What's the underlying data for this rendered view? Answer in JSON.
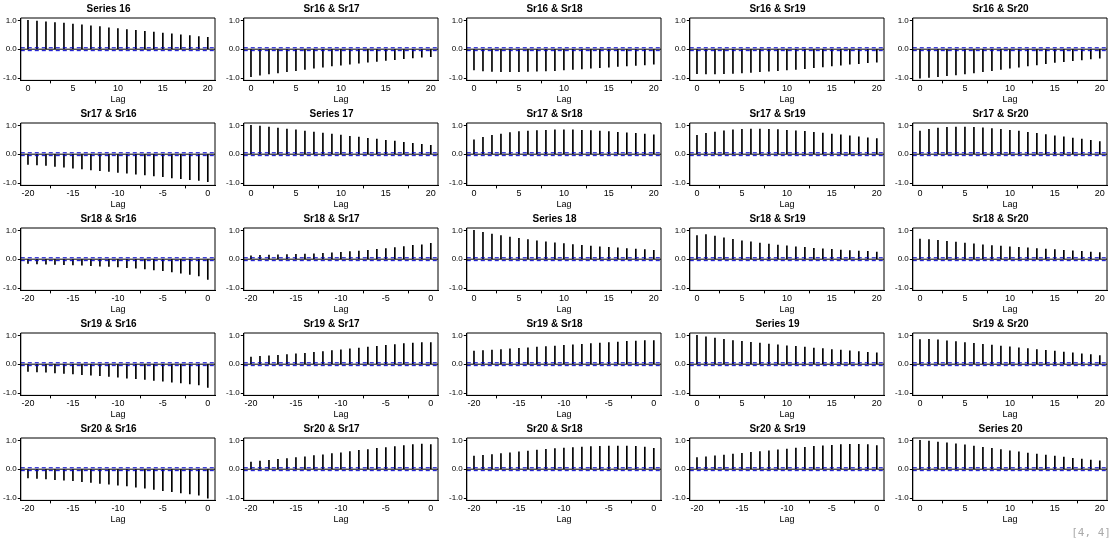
{
  "chart_data": [
    {
      "type": "bar",
      "title": "Series 16",
      "xlabel": "Lag",
      "color": "#000000",
      "x": [
        0,
        1,
        2,
        3,
        4,
        5,
        6,
        7,
        8,
        9,
        10,
        11,
        12,
        13,
        14,
        15,
        16,
        17,
        18,
        19,
        20
      ],
      "values": [
        1.0,
        0.97,
        0.95,
        0.92,
        0.9,
        0.87,
        0.84,
        0.81,
        0.78,
        0.74,
        0.71,
        0.68,
        0.65,
        0.62,
        0.59,
        0.56,
        0.53,
        0.5,
        0.47,
        0.44,
        0.41
      ],
      "xlim": [
        -0.8,
        20.8
      ],
      "xticks": [
        0,
        5,
        10,
        15,
        20
      ],
      "ylim": [
        -1.08,
        1.08
      ],
      "yticks": [
        {
          "value": -1,
          "label": "-1.0"
        },
        {
          "value": 0,
          "label": "0.0"
        },
        {
          "value": 1,
          "label": "1.0"
        }
      ],
      "ref_lines": [
        {
          "axis": "y",
          "value": 0,
          "color": "#000000",
          "line_style": "solid"
        },
        {
          "axis": "y",
          "value": 0.05,
          "color": "#0000cc",
          "line_style": "dashed"
        },
        {
          "axis": "y",
          "value": -0.05,
          "color": "#0000cc",
          "line_style": "dashed"
        }
      ]
    },
    {
      "type": "bar",
      "title": "Sr16 & Sr17",
      "xlabel": "Lag",
      "color": "#000000",
      "x": [
        0,
        1,
        2,
        3,
        4,
        5,
        6,
        7,
        8,
        9,
        10,
        11,
        12,
        13,
        14,
        15,
        16,
        17,
        18,
        19,
        20
      ],
      "values": [
        -0.95,
        -0.9,
        -0.86,
        -0.82,
        -0.78,
        -0.74,
        -0.7,
        -0.66,
        -0.62,
        -0.58,
        -0.55,
        -0.52,
        -0.48,
        -0.45,
        -0.42,
        -0.39,
        -0.36,
        -0.33,
        -0.3,
        -0.28,
        -0.26
      ],
      "xlim": [
        -0.8,
        20.8
      ],
      "xticks": [
        0,
        5,
        10,
        15,
        20
      ],
      "ylim": [
        -1.08,
        1.08
      ],
      "yticks": [
        {
          "value": -1,
          "label": "-1.0"
        },
        {
          "value": 0,
          "label": "0.0"
        },
        {
          "value": 1,
          "label": "1.0"
        }
      ],
      "ref_lines": [
        {
          "axis": "y",
          "value": 0,
          "color": "#000000",
          "line_style": "solid"
        },
        {
          "axis": "y",
          "value": 0.05,
          "color": "#0000cc",
          "line_style": "dashed"
        },
        {
          "axis": "y",
          "value": -0.05,
          "color": "#0000cc",
          "line_style": "dashed"
        }
      ]
    },
    {
      "type": "bar",
      "title": "Sr16 & Sr18",
      "xlabel": "Lag",
      "color": "#000000",
      "x": [
        0,
        1,
        2,
        3,
        4,
        5,
        6,
        7,
        8,
        9,
        10,
        11,
        12,
        13,
        14,
        15,
        16,
        17,
        18,
        19,
        20
      ],
      "values": [
        -0.72,
        -0.75,
        -0.77,
        -0.78,
        -0.78,
        -0.78,
        -0.77,
        -0.76,
        -0.75,
        -0.74,
        -0.72,
        -0.7,
        -0.68,
        -0.66,
        -0.64,
        -0.62,
        -0.6,
        -0.58,
        -0.56,
        -0.54,
        -0.52
      ],
      "xlim": [
        -0.8,
        20.8
      ],
      "xticks": [
        0,
        5,
        10,
        15,
        20
      ],
      "ylim": [
        -1.08,
        1.08
      ],
      "yticks": [
        {
          "value": -1,
          "label": "-1.0"
        },
        {
          "value": 0,
          "label": "0.0"
        },
        {
          "value": 1,
          "label": "1.0"
        }
      ],
      "ref_lines": [
        {
          "axis": "y",
          "value": 0,
          "color": "#000000",
          "line_style": "solid"
        },
        {
          "axis": "y",
          "value": 0.05,
          "color": "#0000cc",
          "line_style": "dashed"
        },
        {
          "axis": "y",
          "value": -0.05,
          "color": "#0000cc",
          "line_style": "dashed"
        }
      ]
    },
    {
      "type": "bar",
      "title": "Sr16 & Sr19",
      "xlabel": "Lag",
      "color": "#000000",
      "x": [
        0,
        1,
        2,
        3,
        4,
        5,
        6,
        7,
        8,
        9,
        10,
        11,
        12,
        13,
        14,
        15,
        16,
        17,
        18,
        19,
        20
      ],
      "values": [
        -0.85,
        -0.86,
        -0.86,
        -0.85,
        -0.84,
        -0.82,
        -0.8,
        -0.78,
        -0.76,
        -0.74,
        -0.72,
        -0.7,
        -0.67,
        -0.64,
        -0.61,
        -0.58,
        -0.55,
        -0.52,
        -0.5,
        -0.47,
        -0.45
      ],
      "xlim": [
        -0.8,
        20.8
      ],
      "xticks": [
        0,
        5,
        10,
        15,
        20
      ],
      "ylim": [
        -1.08,
        1.08
      ],
      "yticks": [
        {
          "value": -1,
          "label": "-1.0"
        },
        {
          "value": 0,
          "label": "0.0"
        },
        {
          "value": 1,
          "label": "1.0"
        }
      ],
      "ref_lines": [
        {
          "axis": "y",
          "value": 0,
          "color": "#000000",
          "line_style": "solid"
        },
        {
          "axis": "y",
          "value": 0.05,
          "color": "#0000cc",
          "line_style": "dashed"
        },
        {
          "axis": "y",
          "value": -0.05,
          "color": "#0000cc",
          "line_style": "dashed"
        }
      ]
    },
    {
      "type": "bar",
      "title": "Sr16 & Sr20",
      "xlabel": "Lag",
      "color": "#000000",
      "x": [
        0,
        1,
        2,
        3,
        4,
        5,
        6,
        7,
        8,
        9,
        10,
        11,
        12,
        13,
        14,
        15,
        16,
        17,
        18,
        19,
        20
      ],
      "values": [
        -1.0,
        -0.98,
        -0.95,
        -0.92,
        -0.89,
        -0.86,
        -0.82,
        -0.78,
        -0.74,
        -0.7,
        -0.66,
        -0.62,
        -0.58,
        -0.54,
        -0.5,
        -0.46,
        -0.43,
        -0.4,
        -0.37,
        -0.34,
        -0.31
      ],
      "xlim": [
        -0.8,
        20.8
      ],
      "xticks": [
        0,
        5,
        10,
        15,
        20
      ],
      "ylim": [
        -1.08,
        1.08
      ],
      "yticks": [
        {
          "value": -1,
          "label": "-1.0"
        },
        {
          "value": 0,
          "label": "0.0"
        },
        {
          "value": 1,
          "label": "1.0"
        }
      ],
      "ref_lines": [
        {
          "axis": "y",
          "value": 0,
          "color": "#000000",
          "line_style": "solid"
        },
        {
          "axis": "y",
          "value": 0.05,
          "color": "#0000cc",
          "line_style": "dashed"
        },
        {
          "axis": "y",
          "value": -0.05,
          "color": "#0000cc",
          "line_style": "dashed"
        }
      ]
    },
    {
      "type": "bar",
      "title": "Sr17 & Sr16",
      "xlabel": "Lag",
      "color": "#000000",
      "x": [
        -20,
        -19,
        -18,
        -17,
        -16,
        -15,
        -14,
        -13,
        -12,
        -11,
        -10,
        -9,
        -8,
        -7,
        -6,
        -5,
        -4,
        -3,
        -2,
        -1,
        0
      ],
      "values": [
        -0.35,
        -0.37,
        -0.39,
        -0.42,
        -0.45,
        -0.48,
        -0.51,
        -0.54,
        -0.57,
        -0.6,
        -0.63,
        -0.66,
        -0.69,
        -0.72,
        -0.75,
        -0.78,
        -0.82,
        -0.85,
        -0.88,
        -0.91,
        -0.95
      ],
      "xlim": [
        -20.8,
        0.8
      ],
      "xticks": [
        -20,
        -15,
        -10,
        -5,
        0
      ],
      "ylim": [
        -1.08,
        1.08
      ],
      "yticks": [
        {
          "value": -1,
          "label": "-1.0"
        },
        {
          "value": 0,
          "label": "0.0"
        },
        {
          "value": 1,
          "label": "1.0"
        }
      ],
      "ref_lines": [
        {
          "axis": "y",
          "value": 0,
          "color": "#000000",
          "line_style": "solid"
        },
        {
          "axis": "y",
          "value": 0.05,
          "color": "#0000cc",
          "line_style": "dashed"
        },
        {
          "axis": "y",
          "value": -0.05,
          "color": "#0000cc",
          "line_style": "dashed"
        }
      ]
    },
    {
      "type": "bar",
      "title": "Series 17",
      "xlabel": "Lag",
      "color": "#000000",
      "x": [
        0,
        1,
        2,
        3,
        4,
        5,
        6,
        7,
        8,
        9,
        10,
        11,
        12,
        13,
        14,
        15,
        16,
        17,
        18,
        19,
        20
      ],
      "values": [
        1.0,
        0.97,
        0.94,
        0.9,
        0.87,
        0.84,
        0.8,
        0.77,
        0.73,
        0.7,
        0.66,
        0.62,
        0.59,
        0.55,
        0.52,
        0.48,
        0.45,
        0.41,
        0.38,
        0.34,
        0.31
      ],
      "xlim": [
        -0.8,
        20.8
      ],
      "xticks": [
        0,
        5,
        10,
        15,
        20
      ],
      "ylim": [
        -1.08,
        1.08
      ],
      "yticks": [
        {
          "value": -1,
          "label": "-1.0"
        },
        {
          "value": 0,
          "label": "0.0"
        },
        {
          "value": 1,
          "label": "1.0"
        }
      ],
      "ref_lines": [
        {
          "axis": "y",
          "value": 0,
          "color": "#000000",
          "line_style": "solid"
        },
        {
          "axis": "y",
          "value": 0.05,
          "color": "#0000cc",
          "line_style": "dashed"
        },
        {
          "axis": "y",
          "value": -0.05,
          "color": "#0000cc",
          "line_style": "dashed"
        }
      ]
    },
    {
      "type": "bar",
      "title": "Sr17 & Sr18",
      "xlabel": "Lag",
      "color": "#000000",
      "x": [
        0,
        1,
        2,
        3,
        4,
        5,
        6,
        7,
        8,
        9,
        10,
        11,
        12,
        13,
        14,
        15,
        16,
        17,
        18,
        19,
        20
      ],
      "values": [
        0.5,
        0.58,
        0.65,
        0.7,
        0.75,
        0.78,
        0.8,
        0.82,
        0.83,
        0.84,
        0.84,
        0.84,
        0.83,
        0.82,
        0.8,
        0.78,
        0.76,
        0.74,
        0.72,
        0.7,
        0.67
      ],
      "xlim": [
        -0.8,
        20.8
      ],
      "xticks": [
        0,
        5,
        10,
        15,
        20
      ],
      "ylim": [
        -1.08,
        1.08
      ],
      "yticks": [
        {
          "value": -1,
          "label": "-1.0"
        },
        {
          "value": 0,
          "label": "0.0"
        },
        {
          "value": 1,
          "label": "1.0"
        }
      ],
      "ref_lines": [
        {
          "axis": "y",
          "value": 0,
          "color": "#000000",
          "line_style": "solid"
        },
        {
          "axis": "y",
          "value": 0.05,
          "color": "#0000cc",
          "line_style": "dashed"
        },
        {
          "axis": "y",
          "value": -0.05,
          "color": "#0000cc",
          "line_style": "dashed"
        }
      ]
    },
    {
      "type": "bar",
      "title": "Sr17 & Sr19",
      "xlabel": "Lag",
      "color": "#000000",
      "x": [
        0,
        1,
        2,
        3,
        4,
        5,
        6,
        7,
        8,
        9,
        10,
        11,
        12,
        13,
        14,
        15,
        16,
        17,
        18,
        19,
        20
      ],
      "values": [
        0.65,
        0.72,
        0.77,
        0.81,
        0.84,
        0.86,
        0.87,
        0.87,
        0.86,
        0.85,
        0.83,
        0.81,
        0.79,
        0.76,
        0.73,
        0.7,
        0.67,
        0.64,
        0.6,
        0.57,
        0.54
      ],
      "xlim": [
        -0.8,
        20.8
      ],
      "xticks": [
        0,
        5,
        10,
        15,
        20
      ],
      "ylim": [
        -1.08,
        1.08
      ],
      "yticks": [
        {
          "value": -1,
          "label": "-1.0"
        },
        {
          "value": 0,
          "label": "0.0"
        },
        {
          "value": 1,
          "label": "1.0"
        }
      ],
      "ref_lines": [
        {
          "axis": "y",
          "value": 0,
          "color": "#000000",
          "line_style": "solid"
        },
        {
          "axis": "y",
          "value": 0.05,
          "color": "#0000cc",
          "line_style": "dashed"
        },
        {
          "axis": "y",
          "value": -0.05,
          "color": "#0000cc",
          "line_style": "dashed"
        }
      ]
    },
    {
      "type": "bar",
      "title": "Sr17 & Sr20",
      "xlabel": "Lag",
      "color": "#000000",
      "x": [
        0,
        1,
        2,
        3,
        4,
        5,
        6,
        7,
        8,
        9,
        10,
        11,
        12,
        13,
        14,
        15,
        16,
        17,
        18,
        19,
        20
      ],
      "values": [
        0.8,
        0.86,
        0.9,
        0.93,
        0.94,
        0.94,
        0.93,
        0.91,
        0.89,
        0.86,
        0.83,
        0.8,
        0.76,
        0.72,
        0.68,
        0.64,
        0.6,
        0.56,
        0.52,
        0.48,
        0.44
      ],
      "xlim": [
        -0.8,
        20.8
      ],
      "xticks": [
        0,
        5,
        10,
        15,
        20
      ],
      "ylim": [
        -1.08,
        1.08
      ],
      "yticks": [
        {
          "value": -1,
          "label": "-1.0"
        },
        {
          "value": 0,
          "label": "0.0"
        },
        {
          "value": 1,
          "label": "1.0"
        }
      ],
      "ref_lines": [
        {
          "axis": "y",
          "value": 0,
          "color": "#000000",
          "line_style": "solid"
        },
        {
          "axis": "y",
          "value": 0.05,
          "color": "#0000cc",
          "line_style": "dashed"
        },
        {
          "axis": "y",
          "value": -0.05,
          "color": "#0000cc",
          "line_style": "dashed"
        }
      ]
    },
    {
      "type": "bar",
      "title": "Sr18 & Sr16",
      "xlabel": "Lag",
      "color": "#000000",
      "x": [
        -20,
        -19,
        -18,
        -17,
        -16,
        -15,
        -14,
        -13,
        -12,
        -11,
        -10,
        -9,
        -8,
        -7,
        -6,
        -5,
        -4,
        -3,
        -2,
        -1,
        0
      ],
      "values": [
        -0.15,
        -0.16,
        -0.17,
        -0.18,
        -0.19,
        -0.2,
        -0.21,
        -0.22,
        -0.24,
        -0.25,
        -0.27,
        -0.29,
        -0.31,
        -0.34,
        -0.37,
        -0.4,
        -0.44,
        -0.48,
        -0.53,
        -0.58,
        -0.7
      ],
      "xlim": [
        -20.8,
        0.8
      ],
      "xticks": [
        -20,
        -15,
        -10,
        -5,
        0
      ],
      "ylim": [
        -1.08,
        1.08
      ],
      "yticks": [
        {
          "value": -1,
          "label": "-1.0"
        },
        {
          "value": 0,
          "label": "0.0"
        },
        {
          "value": 1,
          "label": "1.0"
        }
      ],
      "ref_lines": [
        {
          "axis": "y",
          "value": 0,
          "color": "#000000",
          "line_style": "solid"
        },
        {
          "axis": "y",
          "value": 0.05,
          "color": "#0000cc",
          "line_style": "dashed"
        },
        {
          "axis": "y",
          "value": -0.05,
          "color": "#0000cc",
          "line_style": "dashed"
        }
      ]
    },
    {
      "type": "bar",
      "title": "Sr18 & Sr17",
      "xlabel": "Lag",
      "color": "#000000",
      "x": [
        -20,
        -19,
        -18,
        -17,
        -16,
        -15,
        -14,
        -13,
        -12,
        -11,
        -10,
        -9,
        -8,
        -7,
        -6,
        -5,
        -4,
        -3,
        -2,
        -1,
        0
      ],
      "values": [
        0.12,
        0.13,
        0.14,
        0.15,
        0.16,
        0.17,
        0.18,
        0.19,
        0.2,
        0.22,
        0.24,
        0.26,
        0.28,
        0.31,
        0.34,
        0.37,
        0.4,
        0.44,
        0.48,
        0.5,
        0.55
      ],
      "xlim": [
        -20.8,
        0.8
      ],
      "xticks": [
        -20,
        -15,
        -10,
        -5,
        0
      ],
      "ylim": [
        -1.08,
        1.08
      ],
      "yticks": [
        {
          "value": -1,
          "label": "-1.0"
        },
        {
          "value": 0,
          "label": "0.0"
        },
        {
          "value": 1,
          "label": "1.0"
        }
      ],
      "ref_lines": [
        {
          "axis": "y",
          "value": 0,
          "color": "#000000",
          "line_style": "solid"
        },
        {
          "axis": "y",
          "value": 0.05,
          "color": "#0000cc",
          "line_style": "dashed"
        },
        {
          "axis": "y",
          "value": -0.05,
          "color": "#0000cc",
          "line_style": "dashed"
        }
      ]
    },
    {
      "type": "bar",
      "title": "Series 18",
      "xlabel": "Lag",
      "color": "#000000",
      "x": [
        0,
        1,
        2,
        3,
        4,
        5,
        6,
        7,
        8,
        9,
        10,
        11,
        12,
        13,
        14,
        15,
        16,
        17,
        18,
        19,
        20
      ],
      "values": [
        1.0,
        0.93,
        0.87,
        0.82,
        0.77,
        0.72,
        0.68,
        0.64,
        0.6,
        0.57,
        0.54,
        0.51,
        0.48,
        0.45,
        0.43,
        0.41,
        0.39,
        0.37,
        0.35,
        0.33,
        0.31
      ],
      "xlim": [
        -0.8,
        20.8
      ],
      "xticks": [
        0,
        5,
        10,
        15,
        20
      ],
      "ylim": [
        -1.08,
        1.08
      ],
      "yticks": [
        {
          "value": -1,
          "label": "-1.0"
        },
        {
          "value": 0,
          "label": "0.0"
        },
        {
          "value": 1,
          "label": "1.0"
        }
      ],
      "ref_lines": [
        {
          "axis": "y",
          "value": 0,
          "color": "#000000",
          "line_style": "solid"
        },
        {
          "axis": "y",
          "value": 0.05,
          "color": "#0000cc",
          "line_style": "dashed"
        },
        {
          "axis": "y",
          "value": -0.05,
          "color": "#0000cc",
          "line_style": "dashed"
        }
      ]
    },
    {
      "type": "bar",
      "title": "Sr18 & Sr19",
      "xlabel": "Lag",
      "color": "#000000",
      "x": [
        0,
        1,
        2,
        3,
        4,
        5,
        6,
        7,
        8,
        9,
        10,
        11,
        12,
        13,
        14,
        15,
        16,
        17,
        18,
        19,
        20
      ],
      "values": [
        0.82,
        0.85,
        0.8,
        0.74,
        0.69,
        0.64,
        0.6,
        0.56,
        0.52,
        0.49,
        0.46,
        0.43,
        0.41,
        0.38,
        0.36,
        0.34,
        0.32,
        0.3,
        0.28,
        0.27,
        0.25
      ],
      "xlim": [
        -0.8,
        20.8
      ],
      "xticks": [
        0,
        5,
        10,
        15,
        20
      ],
      "ylim": [
        -1.08,
        1.08
      ],
      "yticks": [
        {
          "value": -1,
          "label": "-1.0"
        },
        {
          "value": 0,
          "label": "0.0"
        },
        {
          "value": 1,
          "label": "1.0"
        }
      ],
      "ref_lines": [
        {
          "axis": "y",
          "value": 0,
          "color": "#000000",
          "line_style": "solid"
        },
        {
          "axis": "y",
          "value": 0.05,
          "color": "#0000cc",
          "line_style": "dashed"
        },
        {
          "axis": "y",
          "value": -0.05,
          "color": "#0000cc",
          "line_style": "dashed"
        }
      ]
    },
    {
      "type": "bar",
      "title": "Sr18 & Sr20",
      "xlabel": "Lag",
      "color": "#000000",
      "x": [
        0,
        1,
        2,
        3,
        4,
        5,
        6,
        7,
        8,
        9,
        10,
        11,
        12,
        13,
        14,
        15,
        16,
        17,
        18,
        19,
        20
      ],
      "values": [
        0.7,
        0.68,
        0.65,
        0.62,
        0.59,
        0.56,
        0.53,
        0.5,
        0.47,
        0.45,
        0.43,
        0.41,
        0.39,
        0.37,
        0.35,
        0.33,
        0.31,
        0.29,
        0.27,
        0.25,
        0.23
      ],
      "xlim": [
        -0.8,
        20.8
      ],
      "xticks": [
        0,
        5,
        10,
        15,
        20
      ],
      "ylim": [
        -1.08,
        1.08
      ],
      "yticks": [
        {
          "value": -1,
          "label": "-1.0"
        },
        {
          "value": 0,
          "label": "0.0"
        },
        {
          "value": 1,
          "label": "1.0"
        }
      ],
      "ref_lines": [
        {
          "axis": "y",
          "value": 0,
          "color": "#000000",
          "line_style": "solid"
        },
        {
          "axis": "y",
          "value": 0.05,
          "color": "#0000cc",
          "line_style": "dashed"
        },
        {
          "axis": "y",
          "value": -0.05,
          "color": "#0000cc",
          "line_style": "dashed"
        }
      ]
    },
    {
      "type": "bar",
      "title": "Sr19 & Sr16",
      "xlabel": "Lag",
      "color": "#000000",
      "x": [
        -20,
        -19,
        -18,
        -17,
        -16,
        -15,
        -14,
        -13,
        -12,
        -11,
        -10,
        -9,
        -8,
        -7,
        -6,
        -5,
        -4,
        -3,
        -2,
        -1,
        0
      ],
      "values": [
        -0.25,
        -0.27,
        -0.28,
        -0.3,
        -0.32,
        -0.34,
        -0.36,
        -0.38,
        -0.4,
        -0.42,
        -0.45,
        -0.48,
        -0.5,
        -0.53,
        -0.56,
        -0.59,
        -0.62,
        -0.65,
        -0.68,
        -0.72,
        -0.8
      ],
      "xlim": [
        -20.8,
        0.8
      ],
      "xticks": [
        -20,
        -15,
        -10,
        -5,
        0
      ],
      "ylim": [
        -1.08,
        1.08
      ],
      "yticks": [
        {
          "value": -1,
          "label": "-1.0"
        },
        {
          "value": 0,
          "label": "0.0"
        },
        {
          "value": 1,
          "label": "1.0"
        }
      ],
      "ref_lines": [
        {
          "axis": "y",
          "value": 0,
          "color": "#000000",
          "line_style": "solid"
        },
        {
          "axis": "y",
          "value": 0.05,
          "color": "#0000cc",
          "line_style": "dashed"
        },
        {
          "axis": "y",
          "value": -0.05,
          "color": "#0000cc",
          "line_style": "dashed"
        }
      ]
    },
    {
      "type": "bar",
      "title": "Sr19 & Sr17",
      "xlabel": "Lag",
      "color": "#000000",
      "x": [
        -20,
        -19,
        -18,
        -17,
        -16,
        -15,
        -14,
        -13,
        -12,
        -11,
        -10,
        -9,
        -8,
        -7,
        -6,
        -5,
        -4,
        -3,
        -2,
        -1,
        0
      ],
      "values": [
        0.25,
        0.27,
        0.29,
        0.31,
        0.33,
        0.36,
        0.38,
        0.41,
        0.44,
        0.47,
        0.5,
        0.53,
        0.56,
        0.59,
        0.62,
        0.65,
        0.68,
        0.71,
        0.73,
        0.75,
        0.75
      ],
      "xlim": [
        -20.8,
        0.8
      ],
      "xticks": [
        -20,
        -15,
        -10,
        -5,
        0
      ],
      "ylim": [
        -1.08,
        1.08
      ],
      "yticks": [
        {
          "value": -1,
          "label": "-1.0"
        },
        {
          "value": 0,
          "label": "0.0"
        },
        {
          "value": 1,
          "label": "1.0"
        }
      ],
      "ref_lines": [
        {
          "axis": "y",
          "value": 0,
          "color": "#000000",
          "line_style": "solid"
        },
        {
          "axis": "y",
          "value": 0.05,
          "color": "#0000cc",
          "line_style": "dashed"
        },
        {
          "axis": "y",
          "value": -0.05,
          "color": "#0000cc",
          "line_style": "dashed"
        }
      ]
    },
    {
      "type": "bar",
      "title": "Sr19 & Sr18",
      "xlabel": "Lag",
      "color": "#000000",
      "x": [
        -20,
        -19,
        -18,
        -17,
        -16,
        -15,
        -14,
        -13,
        -12,
        -11,
        -10,
        -9,
        -8,
        -7,
        -6,
        -5,
        -4,
        -3,
        -2,
        -1,
        0
      ],
      "values": [
        0.45,
        0.47,
        0.49,
        0.51,
        0.53,
        0.55,
        0.57,
        0.59,
        0.61,
        0.63,
        0.65,
        0.67,
        0.69,
        0.71,
        0.73,
        0.75,
        0.77,
        0.79,
        0.8,
        0.82,
        0.82
      ],
      "xlim": [
        -20.8,
        0.8
      ],
      "xticks": [
        -20,
        -15,
        -10,
        -5,
        0
      ],
      "ylim": [
        -1.08,
        1.08
      ],
      "yticks": [
        {
          "value": -1,
          "label": "-1.0"
        },
        {
          "value": 0,
          "label": "0.0"
        },
        {
          "value": 1,
          "label": "1.0"
        }
      ],
      "ref_lines": [
        {
          "axis": "y",
          "value": 0,
          "color": "#000000",
          "line_style": "solid"
        },
        {
          "axis": "y",
          "value": 0.05,
          "color": "#0000cc",
          "line_style": "dashed"
        },
        {
          "axis": "y",
          "value": -0.05,
          "color": "#0000cc",
          "line_style": "dashed"
        }
      ]
    },
    {
      "type": "bar",
      "title": "Series 19",
      "xlabel": "Lag",
      "color": "#000000",
      "x": [
        0,
        1,
        2,
        3,
        4,
        5,
        6,
        7,
        8,
        9,
        10,
        11,
        12,
        13,
        14,
        15,
        16,
        17,
        18,
        19,
        20
      ],
      "values": [
        1.0,
        0.95,
        0.9,
        0.86,
        0.82,
        0.79,
        0.76,
        0.73,
        0.7,
        0.67,
        0.64,
        0.62,
        0.59,
        0.56,
        0.54,
        0.51,
        0.49,
        0.46,
        0.44,
        0.41,
        0.39
      ],
      "xlim": [
        -0.8,
        20.8
      ],
      "xticks": [
        0,
        5,
        10,
        15,
        20
      ],
      "ylim": [
        -1.08,
        1.08
      ],
      "yticks": [
        {
          "value": -1,
          "label": "-1.0"
        },
        {
          "value": 0,
          "label": "0.0"
        },
        {
          "value": 1,
          "label": "1.0"
        }
      ],
      "ref_lines": [
        {
          "axis": "y",
          "value": 0,
          "color": "#000000",
          "line_style": "solid"
        },
        {
          "axis": "y",
          "value": 0.05,
          "color": "#0000cc",
          "line_style": "dashed"
        },
        {
          "axis": "y",
          "value": -0.05,
          "color": "#0000cc",
          "line_style": "dashed"
        }
      ]
    },
    {
      "type": "bar",
      "title": "Sr19 & Sr20",
      "xlabel": "Lag",
      "color": "#000000",
      "x": [
        0,
        1,
        2,
        3,
        4,
        5,
        6,
        7,
        8,
        9,
        10,
        11,
        12,
        13,
        14,
        15,
        16,
        17,
        18,
        19,
        20
      ],
      "values": [
        0.85,
        0.86,
        0.84,
        0.81,
        0.78,
        0.75,
        0.72,
        0.69,
        0.66,
        0.63,
        0.6,
        0.57,
        0.54,
        0.51,
        0.48,
        0.45,
        0.42,
        0.39,
        0.36,
        0.33,
        0.3
      ],
      "xlim": [
        -0.8,
        20.8
      ],
      "xticks": [
        0,
        5,
        10,
        15,
        20
      ],
      "ylim": [
        -1.08,
        1.08
      ],
      "yticks": [
        {
          "value": -1,
          "label": "-1.0"
        },
        {
          "value": 0,
          "label": "0.0"
        },
        {
          "value": 1,
          "label": "1.0"
        }
      ],
      "ref_lines": [
        {
          "axis": "y",
          "value": 0,
          "color": "#000000",
          "line_style": "solid"
        },
        {
          "axis": "y",
          "value": 0.05,
          "color": "#0000cc",
          "line_style": "dashed"
        },
        {
          "axis": "y",
          "value": -0.05,
          "color": "#0000cc",
          "line_style": "dashed"
        }
      ]
    },
    {
      "type": "bar",
      "title": "Sr20 & Sr16",
      "xlabel": "Lag",
      "color": "#000000",
      "x": [
        -20,
        -19,
        -18,
        -17,
        -16,
        -15,
        -14,
        -13,
        -12,
        -11,
        -10,
        -9,
        -8,
        -7,
        -6,
        -5,
        -4,
        -3,
        -2,
        -1,
        0
      ],
      "values": [
        -0.3,
        -0.32,
        -0.34,
        -0.36,
        -0.38,
        -0.4,
        -0.43,
        -0.46,
        -0.49,
        -0.52,
        -0.55,
        -0.58,
        -0.62,
        -0.66,
        -0.7,
        -0.74,
        -0.78,
        -0.82,
        -0.86,
        -0.9,
        -1.0
      ],
      "xlim": [
        -20.8,
        0.8
      ],
      "xticks": [
        -20,
        -15,
        -10,
        -5,
        0
      ],
      "ylim": [
        -1.08,
        1.08
      ],
      "yticks": [
        {
          "value": -1,
          "label": "-1.0"
        },
        {
          "value": 0,
          "label": "0.0"
        },
        {
          "value": 1,
          "label": "1.0"
        }
      ],
      "ref_lines": [
        {
          "axis": "y",
          "value": 0,
          "color": "#000000",
          "line_style": "solid"
        },
        {
          "axis": "y",
          "value": 0.05,
          "color": "#0000cc",
          "line_style": "dashed"
        },
        {
          "axis": "y",
          "value": -0.05,
          "color": "#0000cc",
          "line_style": "dashed"
        }
      ]
    },
    {
      "type": "bar",
      "title": "Sr20 & Sr17",
      "xlabel": "Lag",
      "color": "#000000",
      "x": [
        -20,
        -19,
        -18,
        -17,
        -16,
        -15,
        -14,
        -13,
        -12,
        -11,
        -10,
        -9,
        -8,
        -7,
        -6,
        -5,
        -4,
        -3,
        -2,
        -1,
        0
      ],
      "values": [
        0.25,
        0.28,
        0.31,
        0.34,
        0.37,
        0.4,
        0.43,
        0.47,
        0.5,
        0.54,
        0.57,
        0.61,
        0.65,
        0.68,
        0.72,
        0.75,
        0.78,
        0.82,
        0.85,
        0.87,
        0.85
      ],
      "xlim": [
        -20.8,
        0.8
      ],
      "xticks": [
        -20,
        -15,
        -10,
        -5,
        0
      ],
      "ylim": [
        -1.08,
        1.08
      ],
      "yticks": [
        {
          "value": -1,
          "label": "-1.0"
        },
        {
          "value": 0,
          "label": "0.0"
        },
        {
          "value": 1,
          "label": "1.0"
        }
      ],
      "ref_lines": [
        {
          "axis": "y",
          "value": 0,
          "color": "#000000",
          "line_style": "solid"
        },
        {
          "axis": "y",
          "value": 0.05,
          "color": "#0000cc",
          "line_style": "dashed"
        },
        {
          "axis": "y",
          "value": -0.05,
          "color": "#0000cc",
          "line_style": "dashed"
        }
      ]
    },
    {
      "type": "bar",
      "title": "Sr20 & Sr18",
      "xlabel": "Lag",
      "color": "#000000",
      "x": [
        -20,
        -19,
        -18,
        -17,
        -16,
        -15,
        -14,
        -13,
        -12,
        -11,
        -10,
        -9,
        -8,
        -7,
        -6,
        -5,
        -4,
        -3,
        -2,
        -1,
        0
      ],
      "values": [
        0.45,
        0.48,
        0.51,
        0.54,
        0.57,
        0.6,
        0.63,
        0.66,
        0.69,
        0.71,
        0.73,
        0.75,
        0.77,
        0.78,
        0.79,
        0.8,
        0.8,
        0.8,
        0.79,
        0.77,
        0.72
      ],
      "xlim": [
        -20.8,
        0.8
      ],
      "xticks": [
        -20,
        -15,
        -10,
        -5,
        0
      ],
      "ylim": [
        -1.08,
        1.08
      ],
      "yticks": [
        {
          "value": -1,
          "label": "-1.0"
        },
        {
          "value": 0,
          "label": "0.0"
        },
        {
          "value": 1,
          "label": "1.0"
        }
      ],
      "ref_lines": [
        {
          "axis": "y",
          "value": 0,
          "color": "#000000",
          "line_style": "solid"
        },
        {
          "axis": "y",
          "value": 0.05,
          "color": "#0000cc",
          "line_style": "dashed"
        },
        {
          "axis": "y",
          "value": -0.05,
          "color": "#0000cc",
          "line_style": "dashed"
        }
      ]
    },
    {
      "type": "bar",
      "title": "Sr20 & Sr19",
      "xlabel": "Lag",
      "color": "#000000",
      "x": [
        -20,
        -19,
        -18,
        -17,
        -16,
        -15,
        -14,
        -13,
        -12,
        -11,
        -10,
        -9,
        -8,
        -7,
        -6,
        -5,
        -4,
        -3,
        -2,
        -1,
        0
      ],
      "values": [
        0.4,
        0.43,
        0.46,
        0.49,
        0.52,
        0.55,
        0.58,
        0.61,
        0.64,
        0.67,
        0.7,
        0.73,
        0.76,
        0.79,
        0.81,
        0.83,
        0.85,
        0.86,
        0.86,
        0.85,
        0.82
      ],
      "xlim": [
        -20.8,
        0.8
      ],
      "xticks": [
        -20,
        -15,
        -10,
        -5,
        0
      ],
      "ylim": [
        -1.08,
        1.08
      ],
      "yticks": [
        {
          "value": -1,
          "label": "-1.0"
        },
        {
          "value": 0,
          "label": "0.0"
        },
        {
          "value": 1,
          "label": "1.0"
        }
      ],
      "ref_lines": [
        {
          "axis": "y",
          "value": 0,
          "color": "#000000",
          "line_style": "solid"
        },
        {
          "axis": "y",
          "value": 0.05,
          "color": "#0000cc",
          "line_style": "dashed"
        },
        {
          "axis": "y",
          "value": -0.05,
          "color": "#0000cc",
          "line_style": "dashed"
        }
      ]
    },
    {
      "type": "bar",
      "title": "Series 20",
      "xlabel": "Lag",
      "color": "#000000",
      "x": [
        0,
        1,
        2,
        3,
        4,
        5,
        6,
        7,
        8,
        9,
        10,
        11,
        12,
        13,
        14,
        15,
        16,
        17,
        18,
        19,
        20
      ],
      "values": [
        1.0,
        0.97,
        0.94,
        0.91,
        0.88,
        0.84,
        0.8,
        0.76,
        0.72,
        0.68,
        0.64,
        0.6,
        0.56,
        0.52,
        0.49,
        0.45,
        0.42,
        0.38,
        0.35,
        0.32,
        0.29
      ],
      "xlim": [
        -0.8,
        20.8
      ],
      "xticks": [
        0,
        5,
        10,
        15,
        20
      ],
      "ylim": [
        -1.08,
        1.08
      ],
      "yticks": [
        {
          "value": -1,
          "label": "-1.0"
        },
        {
          "value": 0,
          "label": "0.0"
        },
        {
          "value": 1,
          "label": "1.0"
        }
      ],
      "ref_lines": [
        {
          "axis": "y",
          "value": 0,
          "color": "#000000",
          "line_style": "solid"
        },
        {
          "axis": "y",
          "value": 0.05,
          "color": "#0000cc",
          "line_style": "dashed"
        },
        {
          "axis": "y",
          "value": -0.05,
          "color": "#0000cc",
          "line_style": "dashed"
        }
      ],
      "annotations": [
        "[4, 4]"
      ]
    }
  ]
}
